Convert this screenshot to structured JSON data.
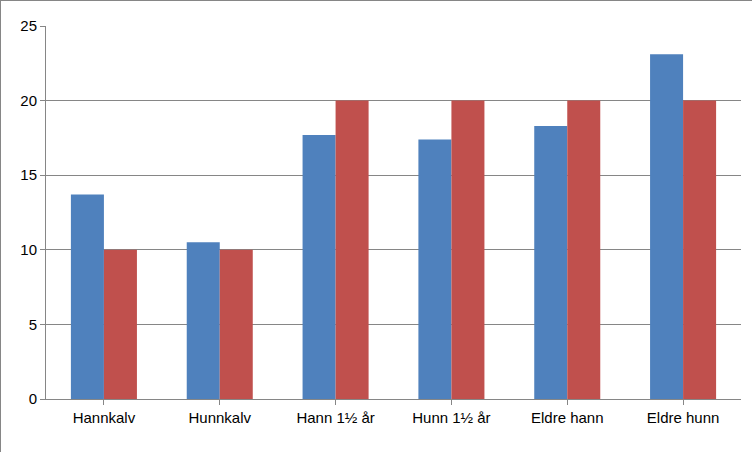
{
  "chart_data": {
    "type": "bar",
    "categories": [
      "Hannkalv",
      "Hunnkalv",
      "Hann 1½ år",
      "Hunn 1½ år",
      "Eldre hann",
      "Eldre hunn"
    ],
    "series": [
      {
        "color": "#4f81bd",
        "values": [
          13.7,
          10.5,
          17.7,
          17.4,
          18.3,
          23.1
        ]
      },
      {
        "color": "#c0504d",
        "values": [
          10,
          10,
          20,
          20,
          20,
          20
        ]
      }
    ],
    "ylim": [
      0,
      25
    ],
    "yticks": [
      0,
      5,
      10,
      15,
      20,
      25
    ],
    "grid": true
  }
}
